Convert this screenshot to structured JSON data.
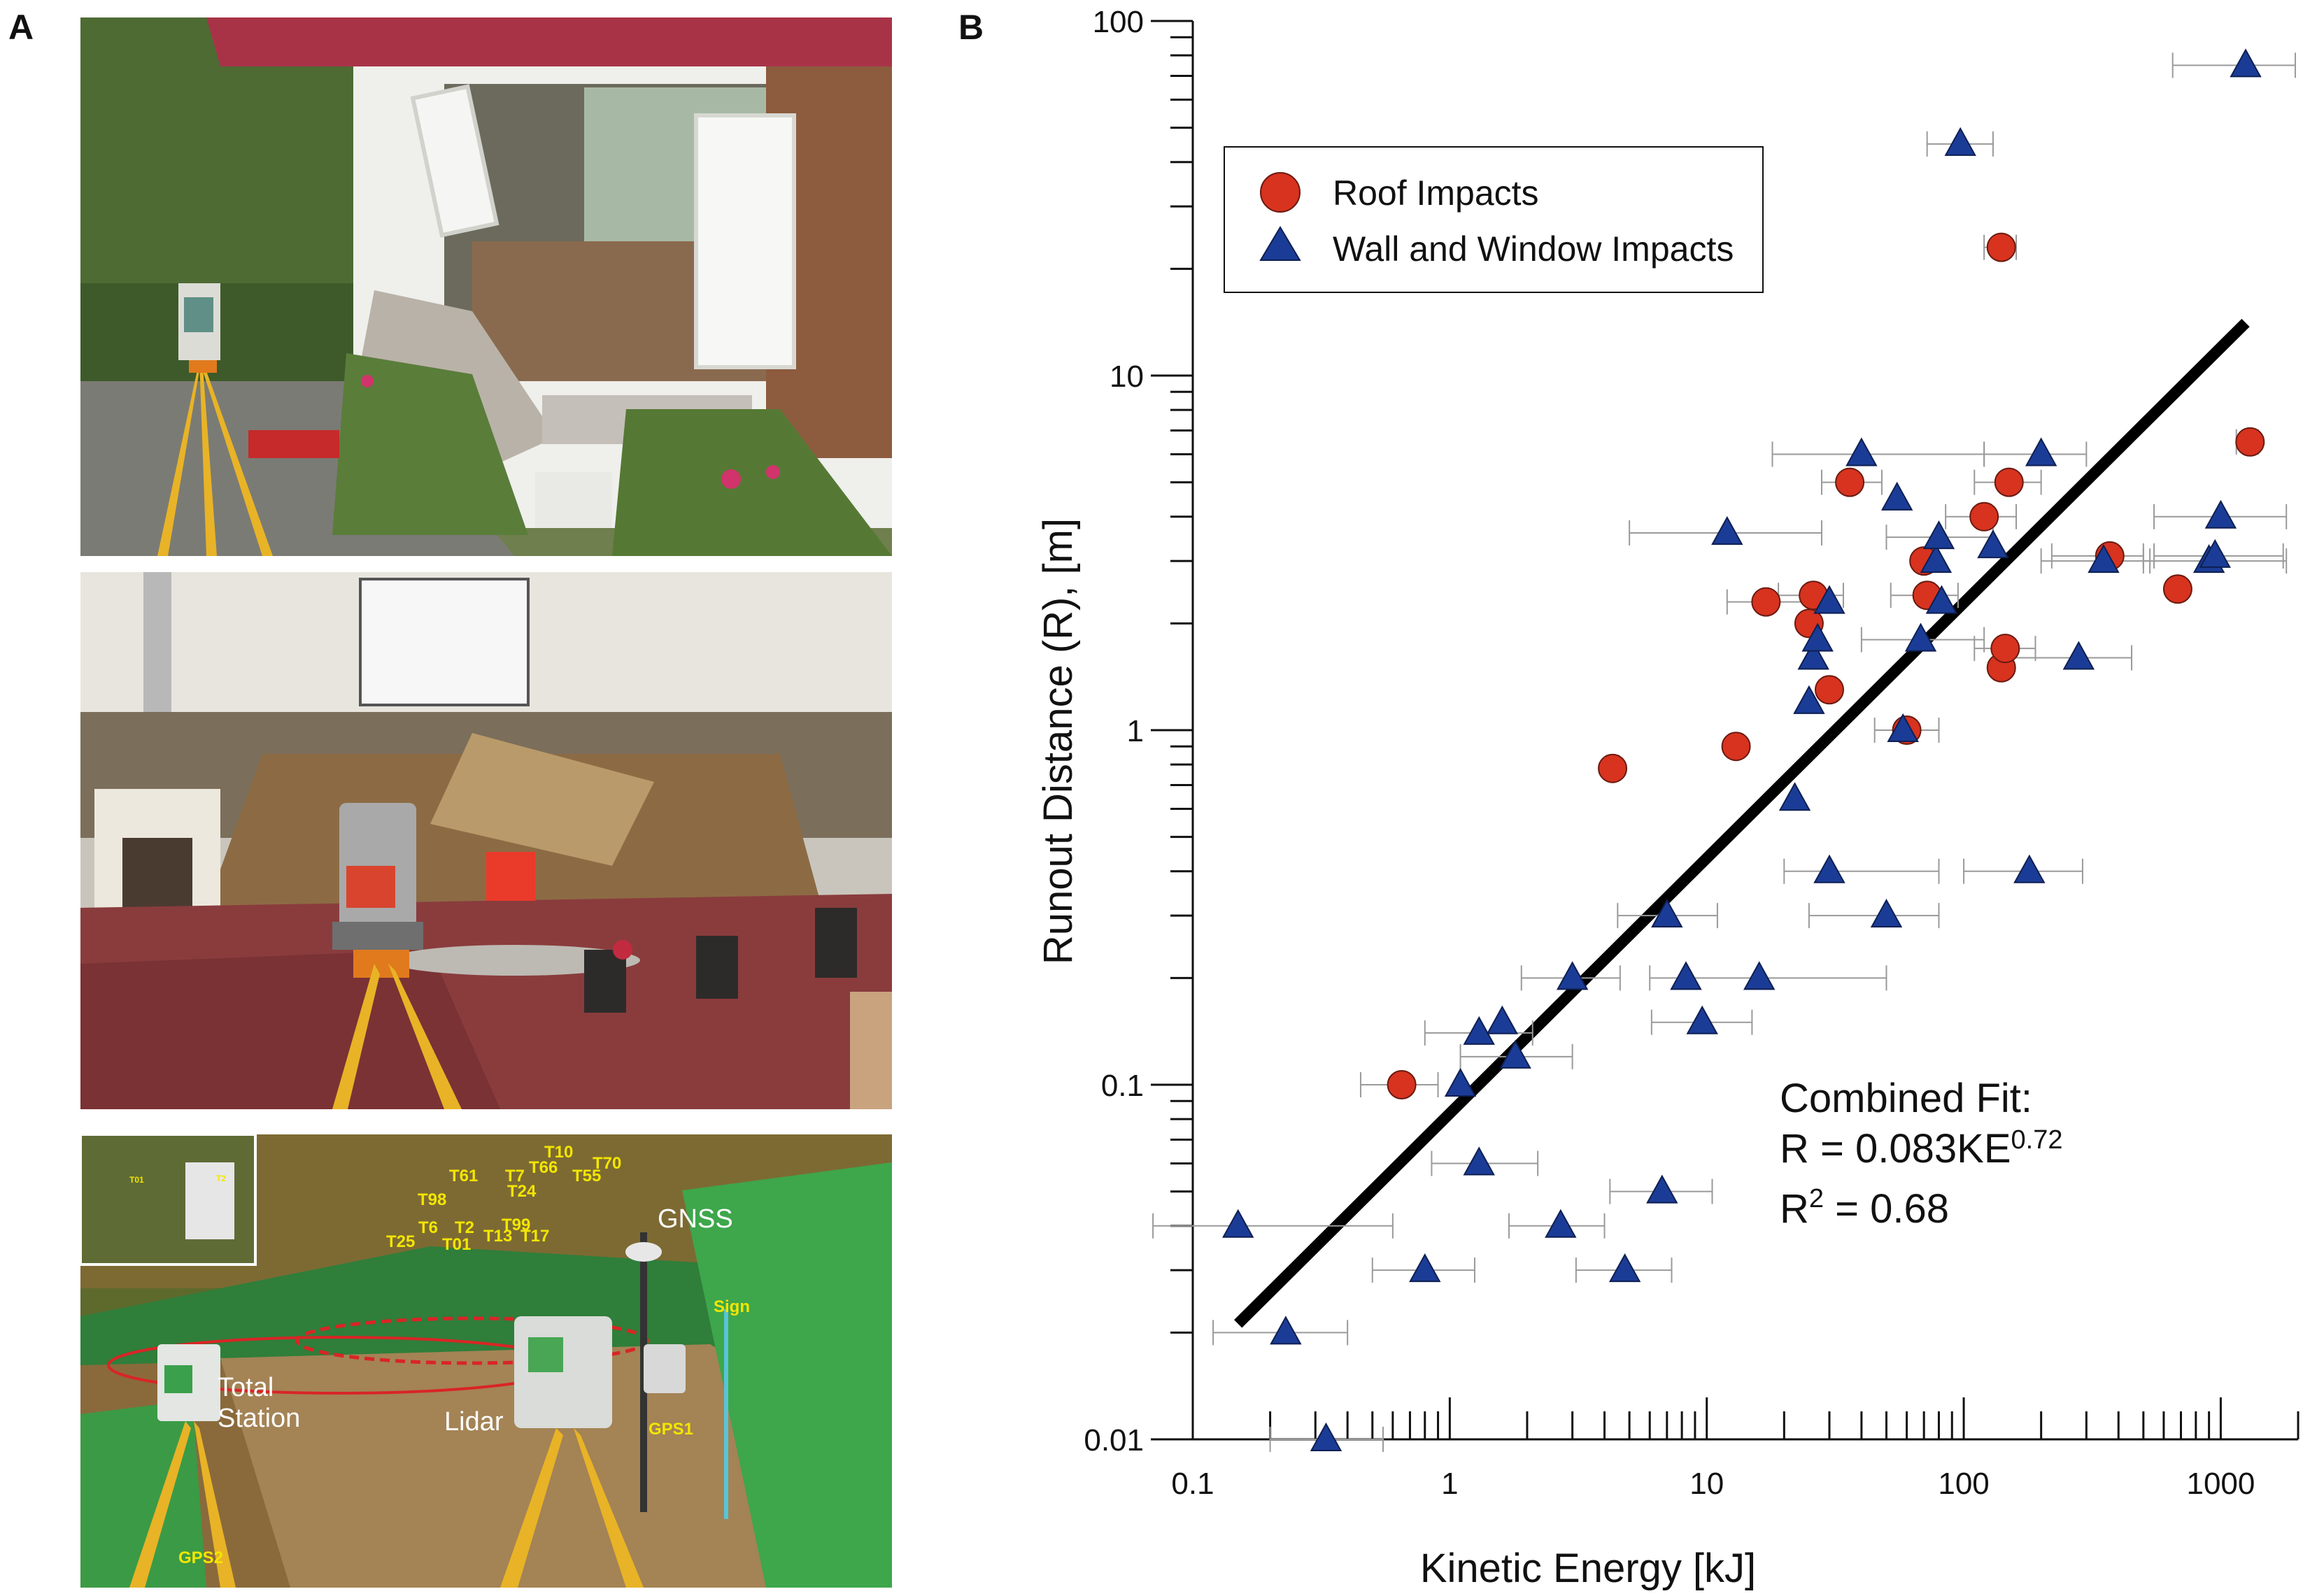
{
  "panels": {
    "a_label": "A",
    "b_label": "B"
  },
  "photo3_labels": {
    "total_station": "Total\nStation",
    "lidar": "Lidar",
    "gnss": "GNSS",
    "sign": "Sign",
    "gps1": "GPS1",
    "gps2": "GPS2",
    "targets": [
      "T10",
      "T61",
      "T7",
      "T66",
      "T55",
      "T70",
      "T24",
      "T98",
      "T6",
      "T2",
      "T99",
      "T25",
      "T01",
      "T13",
      "T17"
    ],
    "inset_targets": [
      "T01",
      "T2"
    ]
  },
  "colors": {
    "roof": "#d7331f",
    "wall": "#1b3c96",
    "fit_line": "#000000",
    "error_bars": "#9a9a9a",
    "photo3_text": "#f2e600"
  },
  "chart_data": {
    "type": "scatter",
    "x_scale": "log",
    "y_scale": "log",
    "xlabel": "Kinetic Energy [kJ]",
    "ylabel": "Runout Distance (R), [m]",
    "xlim": [
      0.1,
      2000
    ],
    "ylim": [
      0.01,
      100
    ],
    "x_ticks": [
      0.1,
      1,
      10,
      100,
      1000
    ],
    "x_tick_labels": [
      "0.1",
      "1",
      "10",
      "100",
      "1000"
    ],
    "y_ticks": [
      0.01,
      0.1,
      1,
      10,
      100
    ],
    "y_tick_labels": [
      "0.01",
      "0.1",
      "1",
      "10",
      "100"
    ],
    "legend_position": "top-left",
    "series": [
      {
        "name": "Roof Impacts",
        "marker": "circle",
        "points": [
          {
            "x": 0.65,
            "y": 0.1,
            "xerr": [
              0.45,
              0.9
            ]
          },
          {
            "x": 4.3,
            "y": 0.78,
            "xerr": null
          },
          {
            "x": 13,
            "y": 0.9,
            "xerr": null
          },
          {
            "x": 17,
            "y": 2.3,
            "xerr": [
              12,
              25
            ]
          },
          {
            "x": 25,
            "y": 2.0,
            "xerr": null
          },
          {
            "x": 26,
            "y": 2.4,
            "xerr": [
              19,
              34
            ]
          },
          {
            "x": 30,
            "y": 1.3,
            "xerr": null
          },
          {
            "x": 36,
            "y": 5.0,
            "xerr": [
              28,
              48
            ]
          },
          {
            "x": 60,
            "y": 1.0,
            "xerr": [
              45,
              80
            ]
          },
          {
            "x": 70,
            "y": 3.0,
            "xerr": null
          },
          {
            "x": 72,
            "y": 2.4,
            "xerr": [
              52,
              95
            ]
          },
          {
            "x": 120,
            "y": 4.0,
            "xerr": [
              85,
              160
            ]
          },
          {
            "x": 140,
            "y": 1.5,
            "xerr": null
          },
          {
            "x": 145,
            "y": 1.7,
            "xerr": [
              110,
              190
            ]
          },
          {
            "x": 140,
            "y": 23,
            "xerr": [
              120,
              160
            ]
          },
          {
            "x": 150,
            "y": 5.0,
            "xerr": [
              110,
              200
            ]
          },
          {
            "x": 370,
            "y": 3.1,
            "xerr": [
              220,
              500
            ]
          },
          {
            "x": 680,
            "y": 2.5,
            "xerr": null
          },
          {
            "x": 1300,
            "y": 6.5,
            "xerr": [
              1150,
              1400
            ]
          }
        ]
      },
      {
        "name": "Wall and Window Impacts",
        "marker": "triangle",
        "points": [
          {
            "x": 0.15,
            "y": 0.04,
            "xerr": [
              0.07,
              0.6
            ]
          },
          {
            "x": 0.23,
            "y": 0.02,
            "xerr": [
              0.12,
              0.4
            ]
          },
          {
            "x": 0.33,
            "y": 0.01,
            "xerr": [
              0.2,
              0.55
            ]
          },
          {
            "x": 0.8,
            "y": 0.03,
            "xerr": [
              0.5,
              1.25
            ]
          },
          {
            "x": 1.1,
            "y": 0.1,
            "xerr": null
          },
          {
            "x": 1.3,
            "y": 0.14,
            "xerr": [
              0.8,
              2.1
            ]
          },
          {
            "x": 1.3,
            "y": 0.06,
            "xerr": [
              0.85,
              2.2
            ]
          },
          {
            "x": 1.6,
            "y": 0.15,
            "xerr": null
          },
          {
            "x": 1.8,
            "y": 0.12,
            "xerr": [
              1.1,
              3.0
            ]
          },
          {
            "x": 2.7,
            "y": 0.04,
            "xerr": [
              1.7,
              4.0
            ]
          },
          {
            "x": 3.0,
            "y": 0.2,
            "xerr": [
              1.9,
              4.6
            ]
          },
          {
            "x": 4.8,
            "y": 0.03,
            "xerr": [
              3.1,
              7.3
            ]
          },
          {
            "x": 6.7,
            "y": 0.05,
            "xerr": [
              4.2,
              10.5
            ]
          },
          {
            "x": 7.0,
            "y": 0.3,
            "xerr": [
              4.5,
              11
            ]
          },
          {
            "x": 8.3,
            "y": 0.2,
            "xerr": null
          },
          {
            "x": 9.6,
            "y": 0.15,
            "xerr": [
              6.1,
              15
            ]
          },
          {
            "x": 12,
            "y": 3.6,
            "xerr": [
              5,
              28
            ]
          },
          {
            "x": 16,
            "y": 0.2,
            "xerr": [
              6,
              50
            ]
          },
          {
            "x": 22,
            "y": 0.64,
            "xerr": null
          },
          {
            "x": 25,
            "y": 1.2,
            "xerr": null
          },
          {
            "x": 26,
            "y": 1.6,
            "xerr": null
          },
          {
            "x": 27,
            "y": 1.8,
            "xerr": null
          },
          {
            "x": 30,
            "y": 2.3,
            "xerr": null
          },
          {
            "x": 30,
            "y": 0.4,
            "xerr": [
              20,
              80
            ]
          },
          {
            "x": 40,
            "y": 6.0,
            "xerr": [
              18,
              120
            ]
          },
          {
            "x": 50,
            "y": 0.3,
            "xerr": [
              25,
              80
            ]
          },
          {
            "x": 55,
            "y": 4.5,
            "xerr": null
          },
          {
            "x": 58,
            "y": 1.0,
            "xerr": null
          },
          {
            "x": 68,
            "y": 1.8,
            "xerr": [
              40,
              120
            ]
          },
          {
            "x": 78,
            "y": 3.0,
            "xerr": null
          },
          {
            "x": 80,
            "y": 3.5,
            "xerr": [
              50,
              130
            ]
          },
          {
            "x": 82,
            "y": 2.3,
            "xerr": null
          },
          {
            "x": 97,
            "y": 45,
            "xerr": [
              72,
              130
            ]
          },
          {
            "x": 130,
            "y": 3.3,
            "xerr": null
          },
          {
            "x": 180,
            "y": 0.4,
            "xerr": [
              100,
              290
            ]
          },
          {
            "x": 200,
            "y": 6.0,
            "xerr": [
              120,
              300
            ]
          },
          {
            "x": 280,
            "y": 1.6,
            "xerr": [
              150,
              450
            ]
          },
          {
            "x": 350,
            "y": 3.0,
            "xerr": [
              200,
              530
            ]
          },
          {
            "x": 900,
            "y": 3.0,
            "xerr": [
              500,
              1800
            ]
          },
          {
            "x": 1000,
            "y": 4.0,
            "xerr": [
              550,
              1800
            ]
          },
          {
            "x": 950,
            "y": 3.1,
            "xerr": [
              550,
              1750
            ]
          },
          {
            "x": 1250,
            "y": 75,
            "xerr": [
              650,
              1950
            ]
          }
        ]
      }
    ],
    "fit": {
      "label": "Combined Fit:",
      "equation_base": "R = 0.083KE",
      "equation_exponent": "0.72",
      "r2_base": "R",
      "r2_sup": "2",
      "r2_value": " = 0.68",
      "coefficient": 0.083,
      "exponent": 0.72,
      "x_range": [
        0.15,
        1250
      ]
    }
  }
}
